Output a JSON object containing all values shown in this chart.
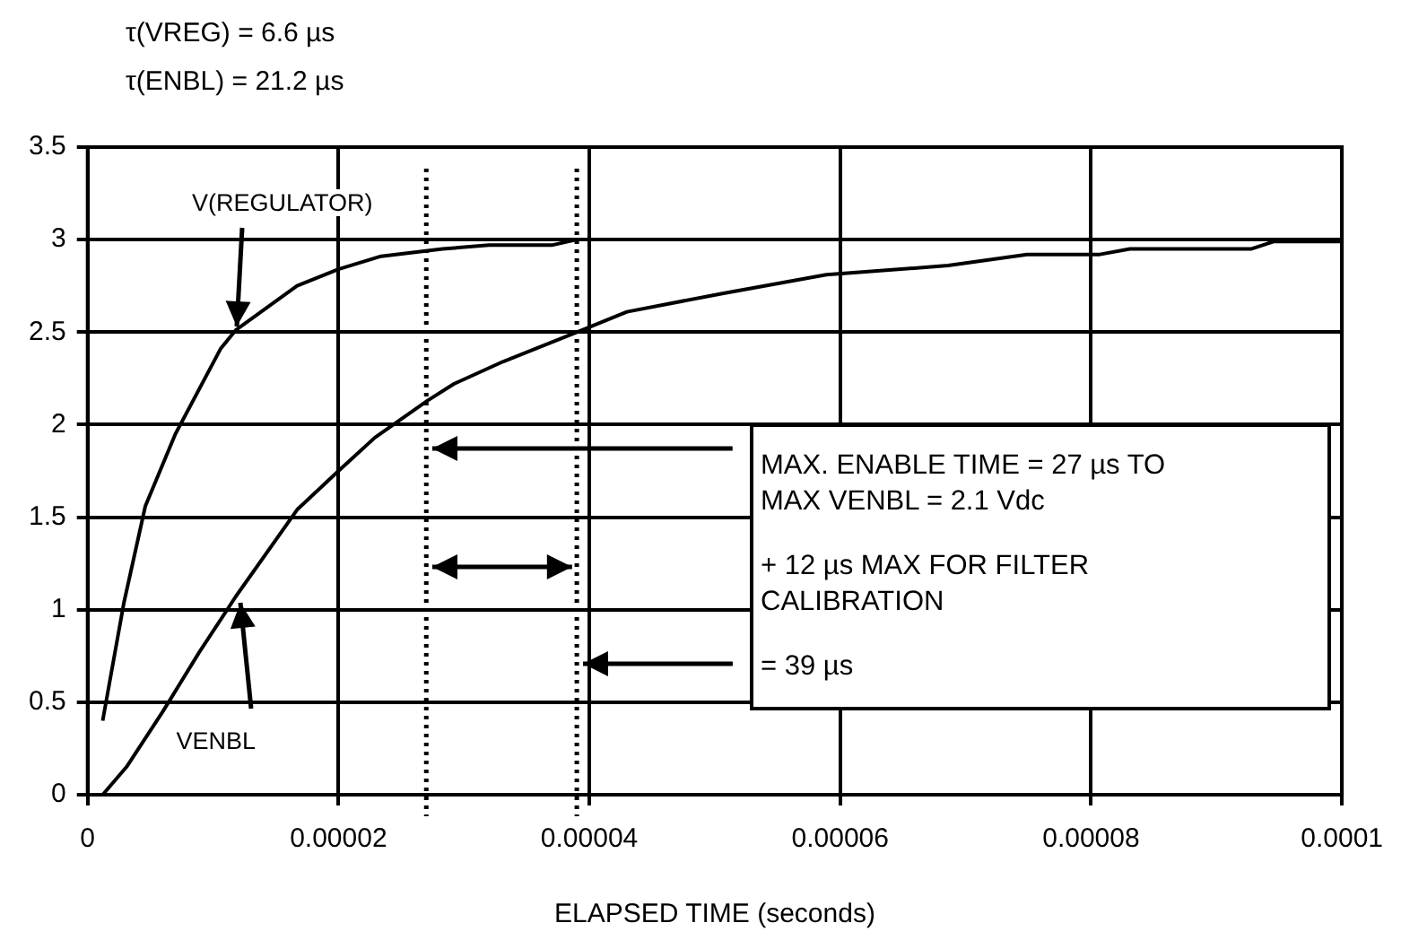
{
  "chart_data": {
    "type": "line",
    "title": "τ(VREG) = 6.6 µs",
    "subtitle": "τ(ENBL) = 21.2 µs",
    "xlabel": "ELAPSED TIME (seconds)",
    "xlim": [
      0,
      0.0001
    ],
    "xticks": [
      0,
      {
        "value": 2e-05,
        "label": "0.00002"
      },
      {
        "value": 4e-05,
        "label": "0.00004"
      },
      {
        "value": 6e-05,
        "label": "0.00006"
      },
      {
        "value": 8e-05,
        "label": "0.00008"
      },
      0.0001
    ],
    "ylim": [
      0,
      3.5
    ],
    "yticks": [
      0,
      0.5,
      1,
      1.5,
      2,
      2.5,
      3,
      3.5
    ],
    "grid": true,
    "marker": "none",
    "line_style": "solid",
    "series": [
      {
        "color": "#000000",
        "x": [
          1.2e-06,
          2.9e-06,
          4.6e-06,
          7e-06,
          1.06e-05,
          1.18e-05,
          1.67e-05,
          2e-05,
          2.34e-05,
          2.83e-05,
          3.2e-05,
          3.7e-05,
          3.9e-05
        ],
        "values": [
          0.4,
          1.04,
          1.56,
          1.95,
          2.41,
          2.51,
          2.75,
          2.84,
          2.91,
          2.95,
          2.97,
          2.97,
          3.0
        ]
      },
      {
        "color": "#000000",
        "x": [
          1.2e-06,
          3.1e-06,
          6e-06,
          8.9e-06,
          1.18e-05,
          1.67e-05,
          2e-05,
          2.29e-05,
          2.71e-05,
          2.92e-05,
          3.31e-05,
          3.94e-05,
          4.3e-05,
          5.07e-05,
          5.89e-05,
          6.86e-05,
          7.49e-05,
          8.07e-05,
          8.31e-05,
          9.28e-05,
          9.46e-05,
          0.0001
        ],
        "values": [
          0.0,
          0.15,
          0.45,
          0.77,
          1.07,
          1.54,
          1.75,
          1.93,
          2.13,
          2.22,
          2.34,
          2.51,
          2.61,
          2.71,
          2.81,
          2.86,
          2.92,
          2.92,
          2.95,
          2.95,
          2.99,
          2.99
        ]
      }
    ],
    "ref_lines": [
      {
        "axis": "x",
        "value": 2.7e-05,
        "color": "#000000",
        "line_style": "dotted"
      },
      {
        "axis": "x",
        "value": 3.9e-05,
        "color": "#000000",
        "line_style": "dotted"
      }
    ],
    "annotations": [
      {
        "text": "V(REGULATOR)",
        "x": 1.18e-05,
        "y": 2.51
      },
      {
        "text": "VENBL",
        "x": 1.18e-05,
        "y": 1.07
      },
      {
        "text": "MAX. ENABLE TIME = 27 µs TO MAX  VENBL = 2.1 Vdc",
        "x": 2.7e-05,
        "y": 1.87
      },
      "+ 12 µs MAX FOR FILTER CALIBRATION",
      {
        "text": "= 39 µs",
        "x": 3.9e-05,
        "y": 0.71
      }
    ]
  }
}
